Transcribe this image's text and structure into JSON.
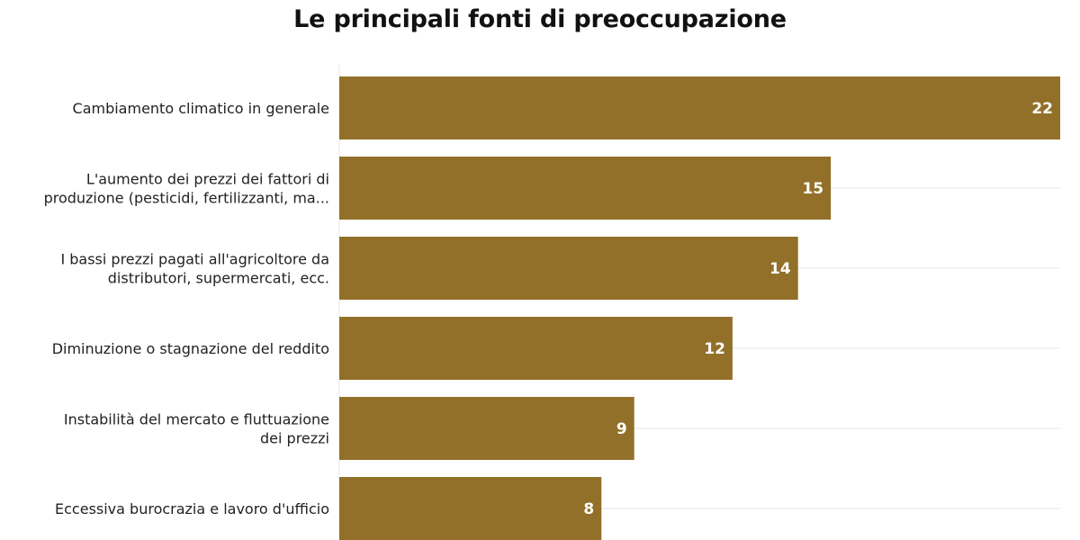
{
  "chart_data": {
    "type": "bar",
    "orientation": "horizontal",
    "title": "Le principali fonti di preoccupazione",
    "categories": [
      [
        "Cambiamento climatico in generale"
      ],
      [
        "L'aumento dei prezzi dei fattori di",
        "produzione (pesticidi, fertilizzanti, ma..."
      ],
      [
        "I bassi prezzi pagati all'agricoltore da",
        "distributori, supermercati, ecc."
      ],
      [
        "Diminuzione o stagnazione del reddito"
      ],
      [
        "Instabilità del mercato e fluttuazione",
        "dei prezzi"
      ],
      [
        "Eccessiva burocrazia e lavoro d'ufficio"
      ]
    ],
    "values": [
      22,
      15,
      14,
      12,
      9,
      8
    ],
    "xlim": [
      0,
      22
    ],
    "grid": true,
    "bar_color": "#927029",
    "grid_color": "#e6e6e6",
    "value_label_color": "#ffffff"
  }
}
